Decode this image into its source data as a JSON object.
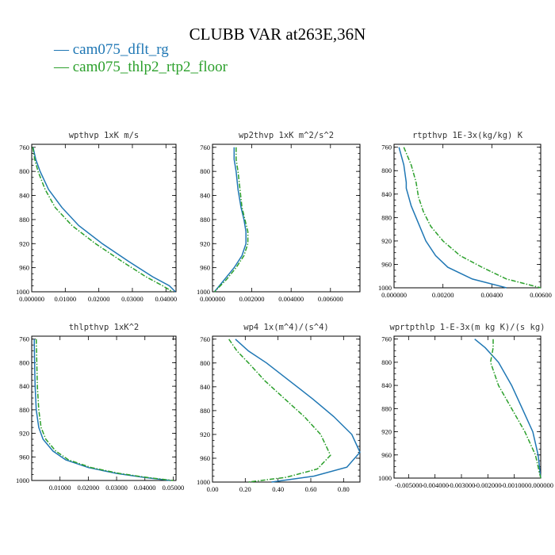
{
  "header": {
    "title": "CLUBB VAR at263E,36N"
  },
  "legend": [
    {
      "label": "— cam075_dflt_rg",
      "color": "#1f77b4"
    },
    {
      "label": "— cam075_thlp2_rtp2_floor",
      "color": "#2ca02c"
    }
  ],
  "chart_data": [
    {
      "type": "line",
      "title": "wpthvp  1xK m/s",
      "xlim": [
        0,
        0.043
      ],
      "ylim": [
        1000,
        755
      ],
      "xticks": [
        0,
        0.01,
        0.02,
        0.03,
        0.04
      ],
      "xtick_labels": [
        "0.000000",
        "0.01000",
        "0.02000",
        "0.03000",
        "0.04000"
      ],
      "yticks": [
        760,
        800,
        840,
        880,
        920,
        960,
        1000
      ],
      "series": [
        {
          "name": "cam075_dflt_rg",
          "color": "#1f77b4",
          "style": "solid",
          "x": [
            0.0004,
            0.0012,
            0.0025,
            0.005,
            0.009,
            0.014,
            0.021,
            0.029,
            0.036,
            0.041,
            0.0428
          ],
          "y": [
            760,
            780,
            800,
            830,
            860,
            890,
            920,
            950,
            975,
            990,
            1000
          ]
        },
        {
          "name": "cam075_thlp2_rtp2_floor",
          "color": "#2ca02c",
          "style": "dashdot",
          "x": [
            0.0003,
            0.0009,
            0.0019,
            0.004,
            0.007,
            0.012,
            0.019,
            0.027,
            0.034,
            0.039,
            0.042
          ],
          "y": [
            760,
            780,
            800,
            830,
            860,
            890,
            920,
            950,
            975,
            990,
            1000
          ]
        }
      ]
    },
    {
      "type": "line",
      "title": "wp2thvp  1xK m^2/s^2",
      "xlim": [
        0,
        0.0075
      ],
      "ylim": [
        1000,
        755
      ],
      "xticks": [
        0,
        0.002,
        0.004,
        0.006
      ],
      "xtick_labels": [
        "0.000000",
        "0.002000",
        "0.004000",
        "0.006000"
      ],
      "yticks": [
        760,
        800,
        840,
        880,
        920,
        960,
        1000
      ],
      "series": [
        {
          "name": "cam075_dflt_rg",
          "color": "#1f77b4",
          "style": "solid",
          "x": [
            0.0011,
            0.0011,
            0.0012,
            0.0013,
            0.00145,
            0.0016,
            0.0017,
            0.0017,
            0.0015,
            0.0011,
            0.0006,
            0.0001
          ],
          "y": [
            760,
            780,
            800,
            830,
            860,
            880,
            900,
            920,
            940,
            960,
            980,
            1000
          ]
        },
        {
          "name": "cam075_thlp2_rtp2_floor",
          "color": "#2ca02c",
          "style": "dashdot",
          "x": [
            0.0012,
            0.0012,
            0.0013,
            0.0014,
            0.0015,
            0.00165,
            0.0018,
            0.0018,
            0.0016,
            0.0012,
            0.0007,
            0.0001
          ],
          "y": [
            760,
            780,
            800,
            830,
            860,
            880,
            900,
            920,
            940,
            960,
            980,
            1000
          ]
        }
      ]
    },
    {
      "type": "line",
      "title": "rtpthvp  1E-3x(kg/kg) K",
      "xlim": [
        0,
        0.006
      ],
      "ylim": [
        1000,
        755
      ],
      "xticks": [
        0,
        0.002,
        0.004,
        0.006
      ],
      "xtick_labels": [
        "0.000000",
        "0.00200",
        "0.00400",
        "0.00600"
      ],
      "yticks": [
        760,
        800,
        840,
        880,
        920,
        960,
        1000
      ],
      "series": [
        {
          "name": "cam075_dflt_rg",
          "color": "#1f77b4",
          "style": "solid",
          "x": [
            0.0002,
            0.0004,
            0.0005,
            0.0005,
            0.0007,
            0.001,
            0.0013,
            0.0017,
            0.0022,
            0.0032,
            0.0046
          ],
          "y": [
            760,
            790,
            820,
            830,
            860,
            890,
            920,
            945,
            965,
            985,
            1000
          ]
        },
        {
          "name": "cam075_thlp2_rtp2_floor",
          "color": "#2ca02c",
          "style": "dashdot",
          "x": [
            0.0004,
            0.0007,
            0.0009,
            0.001,
            0.0012,
            0.0015,
            0.002,
            0.0027,
            0.0036,
            0.0046,
            0.006
          ],
          "y": [
            760,
            790,
            820,
            845,
            870,
            895,
            920,
            945,
            965,
            985,
            1000
          ]
        }
      ]
    },
    {
      "type": "line",
      "title": "thlpthvp  1xK^2",
      "xlim": [
        0,
        0.051
      ],
      "ylim": [
        1000,
        755
      ],
      "xticks": [
        0.01,
        0.02,
        0.03,
        0.04,
        0.05
      ],
      "xtick_labels": [
        "0.01000",
        "0.02000",
        "0.03000",
        "0.04000",
        "0.05000"
      ],
      "yticks": [
        760,
        800,
        840,
        880,
        920,
        960,
        1000
      ],
      "series": [
        {
          "name": "cam075_dflt_rg",
          "color": "#1f77b4",
          "style": "solid",
          "x": [
            0.0009,
            0.001,
            0.0012,
            0.0016,
            0.0025,
            0.004,
            0.0075,
            0.012,
            0.02,
            0.03,
            0.04,
            0.049
          ],
          "y": [
            760,
            800,
            840,
            880,
            910,
            930,
            950,
            965,
            978,
            988,
            995,
            1000
          ]
        },
        {
          "name": "cam075_thlp2_rtp2_floor",
          "color": "#2ca02c",
          "style": "dashdot",
          "x": [
            0.0016,
            0.0018,
            0.002,
            0.0025,
            0.0033,
            0.005,
            0.0085,
            0.013,
            0.021,
            0.031,
            0.041,
            0.05
          ],
          "y": [
            760,
            800,
            840,
            880,
            910,
            930,
            950,
            965,
            978,
            988,
            995,
            1000
          ]
        }
      ]
    },
    {
      "type": "line",
      "title": "wp4  1x(m^4)/(s^4)",
      "xlim": [
        0,
        0.9
      ],
      "ylim": [
        1000,
        755
      ],
      "xticks": [
        0,
        0.2,
        0.4,
        0.6,
        0.8
      ],
      "xtick_labels": [
        "0.00",
        "0.20",
        "0.40",
        "0.60",
        "0.80"
      ],
      "yticks": [
        760,
        800,
        840,
        880,
        920,
        960,
        1000
      ],
      "series": [
        {
          "name": "cam075_dflt_rg",
          "color": "#1f77b4",
          "style": "solid",
          "x": [
            0.14,
            0.22,
            0.33,
            0.47,
            0.61,
            0.74,
            0.85,
            0.9,
            0.82,
            0.62,
            0.36
          ],
          "y": [
            760,
            780,
            800,
            830,
            860,
            890,
            920,
            950,
            975,
            990,
            1000
          ]
        },
        {
          "name": "cam075_thlp2_rtp2_floor",
          "color": "#2ca02c",
          "style": "dashdot",
          "x": [
            0.1,
            0.15,
            0.22,
            0.32,
            0.44,
            0.56,
            0.66,
            0.72,
            0.64,
            0.45,
            0.22
          ],
          "y": [
            760,
            780,
            800,
            830,
            860,
            890,
            920,
            955,
            978,
            992,
            1000
          ]
        }
      ]
    },
    {
      "type": "line",
      "title": "wprtpthlp  1-E-3x(m kg K)/(s kg)",
      "xlim": [
        -0.00555,
        0
      ],
      "ylim": [
        1000,
        755
      ],
      "xticks": [
        -0.005,
        -0.004,
        -0.003,
        -0.002,
        -0.001,
        0
      ],
      "xtick_labels": [
        "-0.005000",
        "-0.004000",
        "-0.003000",
        "-0.002000",
        "-0.001000",
        "0.000000"
      ],
      "yticks": [
        760,
        800,
        840,
        880,
        920,
        960,
        1000
      ],
      "series": [
        {
          "name": "cam075_dflt_rg",
          "color": "#1f77b4",
          "style": "solid",
          "x": [
            -0.0025,
            -0.0021,
            -0.0016,
            -0.0011,
            -0.0007,
            -0.0003,
            -0.0001,
            0
          ],
          "y": [
            760,
            775,
            800,
            840,
            880,
            920,
            960,
            1000
          ]
        },
        {
          "name": "cam075_thlp2_rtp2_floor",
          "color": "#2ca02c",
          "style": "dashdot",
          "x": [
            -0.0018,
            -0.0018,
            -0.0019,
            -0.0016,
            -0.0011,
            -0.0006,
            -0.0002,
            0
          ],
          "y": [
            760,
            775,
            800,
            840,
            880,
            920,
            960,
            1000
          ]
        }
      ]
    }
  ]
}
